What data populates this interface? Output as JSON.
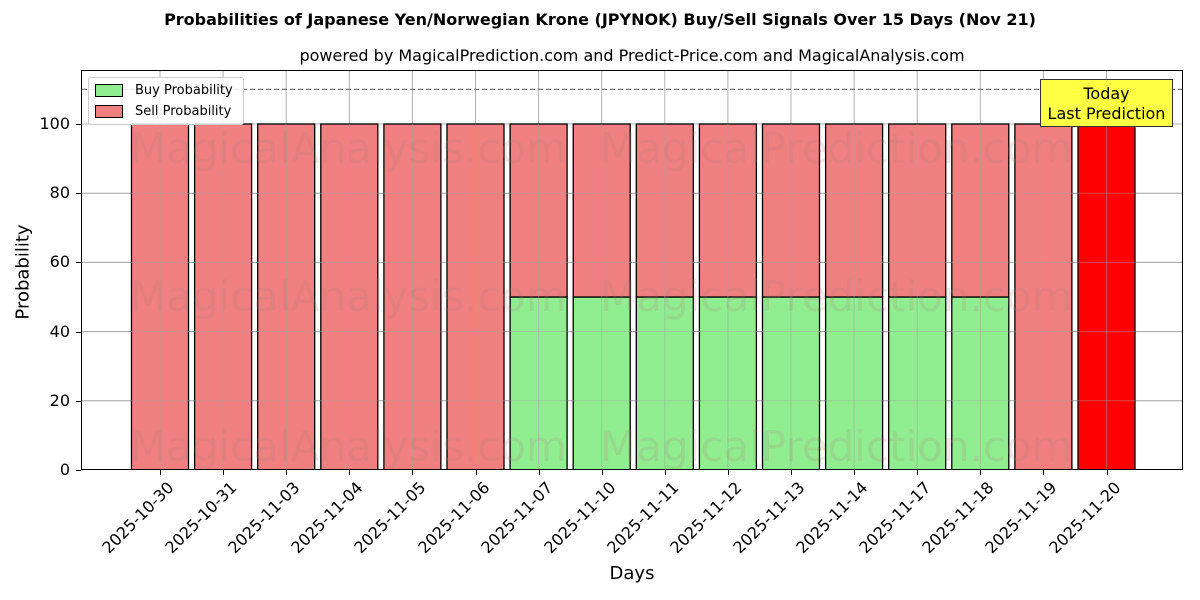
{
  "header": {
    "title": "Probabilities of Japanese Yen/Norwegian Krone (JPYNOK) Buy/Sell Signals Over 15 Days (Nov 21)",
    "subtitle": "powered by MagicalPrediction.com and Predict-Price.com and MagicalAnalysis.com"
  },
  "axes": {
    "xlabel": "Days",
    "ylabel": "Probability",
    "yticks": [
      "0",
      "20",
      "40",
      "60",
      "80",
      "100"
    ]
  },
  "legend": {
    "buy_label": "Buy Probability",
    "sell_label": "Sell Probability"
  },
  "annotation": {
    "line1": "Today",
    "line2": "Last Prediction"
  },
  "watermarks": [
    "MagicalAnalysis.com",
    "MagicalPrediction.com"
  ],
  "colors": {
    "buy": "#90ee90",
    "sell": "#f08080",
    "today_sell": "#ff0000",
    "annotation_bg": "#ffff44"
  },
  "chart_data": {
    "type": "bar",
    "stacked": true,
    "title": "Probabilities of Japanese Yen/Norwegian Krone (JPYNOK) Buy/Sell Signals Over 15 Days (Nov 21)",
    "subtitle": "powered by MagicalPrediction.com and Predict-Price.com and MagicalAnalysis.com",
    "xlabel": "Days",
    "ylabel": "Probability",
    "ylim": [
      0,
      115
    ],
    "yticks": [
      0,
      20,
      40,
      60,
      80,
      100
    ],
    "grid": true,
    "legend_position": "upper left",
    "reference_line": {
      "y": 110,
      "style": "dashed"
    },
    "categories": [
      "2025-10-30",
      "2025-10-31",
      "2025-11-03",
      "2025-11-04",
      "2025-11-05",
      "2025-11-06",
      "2025-11-07",
      "2025-11-10",
      "2025-11-11",
      "2025-11-12",
      "2025-11-13",
      "2025-11-14",
      "2025-11-17",
      "2025-11-18",
      "2025-11-19",
      "2025-11-20"
    ],
    "series": [
      {
        "name": "Buy Probability",
        "values": [
          0,
          0,
          0,
          0,
          0,
          0,
          50,
          50,
          50,
          50,
          50,
          50,
          50,
          50,
          0,
          0
        ]
      },
      {
        "name": "Sell Probability",
        "values": [
          100,
          100,
          100,
          100,
          100,
          100,
          50,
          50,
          50,
          50,
          50,
          50,
          50,
          50,
          100,
          100
        ]
      }
    ],
    "annotations": [
      {
        "text": "Today\nLast Prediction",
        "x": "2025-11-20",
        "highlight": "last bar in bright red"
      }
    ]
  }
}
